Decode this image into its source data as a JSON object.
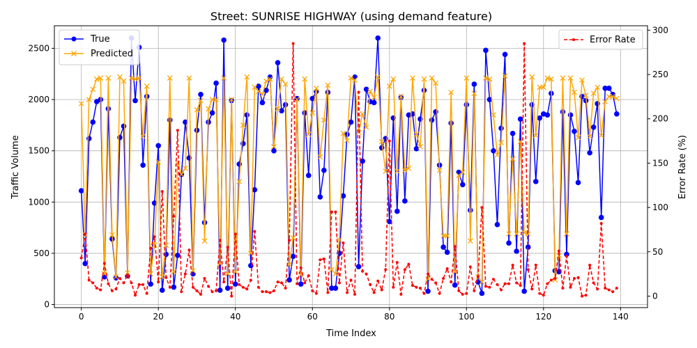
{
  "chart_data": {
    "type": "line",
    "title": "Street: SUNRISE HIGHWAY (using demand feature)",
    "xlabel": "Time Index",
    "ylabel": "Traffic Volume",
    "y2label": "Error Rate (%)",
    "xlim": [
      -7,
      147
    ],
    "ylim": [
      -30,
      2720
    ],
    "y2lim": [
      -13,
      305
    ],
    "x_ticks": [
      0,
      20,
      40,
      60,
      80,
      100,
      120,
      140
    ],
    "y_ticks": [
      0,
      500,
      1000,
      1500,
      2000,
      2500
    ],
    "y2_ticks": [
      0,
      50,
      100,
      150,
      200,
      250,
      300
    ],
    "grid": true,
    "legend_left": {
      "placement": "upper-left",
      "entries": [
        "True",
        "Predicted"
      ]
    },
    "legend_right": {
      "placement": "upper-right",
      "entries": [
        "Error Rate"
      ]
    },
    "colors": {
      "true": "#0000ff",
      "predicted": "#ffa500",
      "error": "#ff0000"
    },
    "series": [
      {
        "name": "True",
        "axis": "left",
        "values": [
          1110,
          400,
          1620,
          1780,
          1980,
          2000,
          270,
          1910,
          640,
          260,
          1630,
          1740,
          280,
          2600,
          1990,
          2510,
          1360,
          2030,
          200,
          990,
          1550,
          140,
          490,
          1800,
          170,
          480,
          1270,
          1780,
          1430,
          300,
          1700,
          2050,
          800,
          1780,
          1870,
          2160,
          140,
          2580,
          160,
          1990,
          200,
          1370,
          1570,
          1850,
          380,
          1120,
          2130,
          1970,
          2090,
          2220,
          1500,
          2360,
          1890,
          1950,
          240,
          470,
          2010,
          200,
          1870,
          1260,
          2010,
          2080,
          1050,
          1310,
          2070,
          160,
          160,
          500,
          1060,
          1660,
          1780,
          2220,
          370,
          1400,
          2100,
          1980,
          1970,
          2600,
          1530,
          1620,
          810,
          1820,
          910,
          2020,
          1010,
          1850,
          1860,
          1520,
          1810,
          2090,
          130,
          1800,
          1880,
          1360,
          560,
          510,
          1770,
          190,
          1290,
          1170,
          1950,
          920,
          2150,
          220,
          110,
          2480,
          2000,
          1500,
          780,
          1720,
          2440,
          600,
          1670,
          520,
          1810,
          130,
          560,
          1950,
          1200,
          1820,
          1860,
          1850,
          2060,
          330,
          320,
          1880,
          490,
          1850,
          1690,
          1190,
          2030,
          1990,
          1480,
          1730,
          1960,
          850,
          2110,
          2110,
          2050,
          1860
        ]
      },
      {
        "name": "Predicted",
        "axis": "left",
        "values": [
          1960,
          680,
          2000,
          2100,
          2200,
          2210,
          300,
          2210,
          680,
          270,
          2220,
          2180,
          310,
          2210,
          2200,
          2210,
          1640,
          2130,
          300,
          580,
          1390,
          270,
          580,
          2210,
          320,
          1380,
          1270,
          1330,
          2210,
          330,
          1900,
          1990,
          620,
          1910,
          2000,
          2000,
          400,
          2210,
          300,
          2000,
          320,
          1200,
          1750,
          2220,
          500,
          2120,
          2080,
          2050,
          2180,
          2200,
          1540,
          1910,
          2200,
          2150,
          390,
          650,
          2000,
          290,
          2200,
          1660,
          1870,
          2110,
          1440,
          1800,
          2140,
          340,
          300,
          630,
          1670,
          1600,
          2210,
          2190,
          1680,
          1860,
          1730,
          2080,
          2020,
          2220,
          1590,
          1300,
          2130,
          2200,
          1300,
          2030,
          1310,
          1330,
          2210,
          1660,
          1540,
          2200,
          250,
          2210,
          2160,
          1310,
          670,
          670,
          2070,
          320,
          1260,
          1290,
          2210,
          620,
          2060,
          270,
          220,
          2210,
          2200,
          1850,
          1460,
          1580,
          2230,
          690,
          1420,
          690,
          1590,
          700,
          690,
          2220,
          1650,
          2120,
          2120,
          2210,
          2200,
          240,
          480,
          2210,
          690,
          2210,
          2070,
          1630,
          2190,
          2040,
          1640,
          2060,
          2120,
          1650,
          1980,
          2030,
          2030,
          2010
        ]
      },
      {
        "name": "Error Rate",
        "axis": "right",
        "values": [
          43,
          70,
          18,
          15,
          9,
          7,
          37,
          14,
          6,
          8,
          20,
          15,
          24,
          15,
          1,
          13,
          13,
          3,
          54,
          67,
          16,
          118,
          21,
          10,
          90,
          187,
          5,
          25,
          52,
          10,
          6,
          2,
          20,
          11,
          5,
          6,
          63,
          16,
          55,
          0,
          70,
          13,
          10,
          8,
          18,
          73,
          10,
          5,
          5,
          4,
          6,
          16,
          15,
          9,
          63,
          285,
          14,
          32,
          15,
          23,
          6,
          3,
          41,
          42,
          4,
          95,
          95,
          15,
          60,
          4,
          18,
          2,
          230,
          28,
          25,
          13,
          4,
          17,
          7,
          30,
          175,
          10,
          38,
          2,
          30,
          36,
          12,
          10,
          9,
          3,
          25,
          19,
          15,
          3,
          20,
          31,
          16,
          56,
          6,
          2,
          3,
          33,
          6,
          22,
          100,
          11,
          10,
          19,
          13,
          7,
          14,
          14,
          35,
          15,
          12,
          285,
          30,
          8,
          35,
          3,
          1,
          14,
          18,
          20,
          51,
          9,
          45,
          10,
          20,
          21,
          0,
          1,
          35,
          15,
          8,
          82,
          9,
          7,
          5,
          9
        ]
      }
    ]
  }
}
